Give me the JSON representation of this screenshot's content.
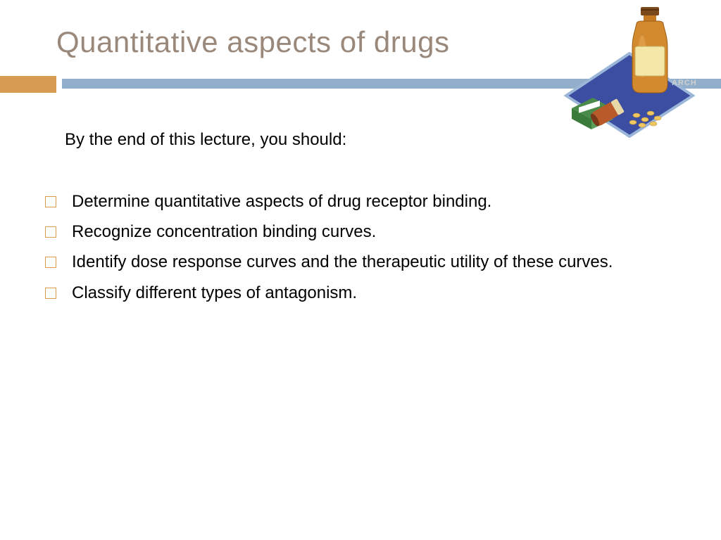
{
  "title": {
    "text": "Quantitative aspects of drugs",
    "color": "#9a887b",
    "fontsize": 42
  },
  "accent": {
    "block_color": "#d89b52",
    "bar_color": "#91aecb"
  },
  "intro": {
    "text": "By the end of this lecture, you should:",
    "fontsize": 24
  },
  "bullets": {
    "marker_color": "#d89b52",
    "fontsize": 24,
    "items": [
      "Determine quantitative aspects of drug receptor binding.",
      "Recognize concentration binding curves.",
      "Identify dose response curves and the therapeutic utility of these curves.",
      "Classify different types of antagonism."
    ]
  },
  "clipart": {
    "name": "medicine-bottle-pills-icon",
    "bottle_color": "#d38a2e",
    "bottle_label": "#f5e7a8",
    "cap_color": "#7a4a1a",
    "mat_color": "#3b4ea2",
    "mat_border": "#9bb6d9",
    "pill_bottle_color": "#b85a2a",
    "pill_color": "#f0c661",
    "box_color": "#5aa05a",
    "box_label": "#ffffff",
    "watermark": "#d0d0d0"
  }
}
